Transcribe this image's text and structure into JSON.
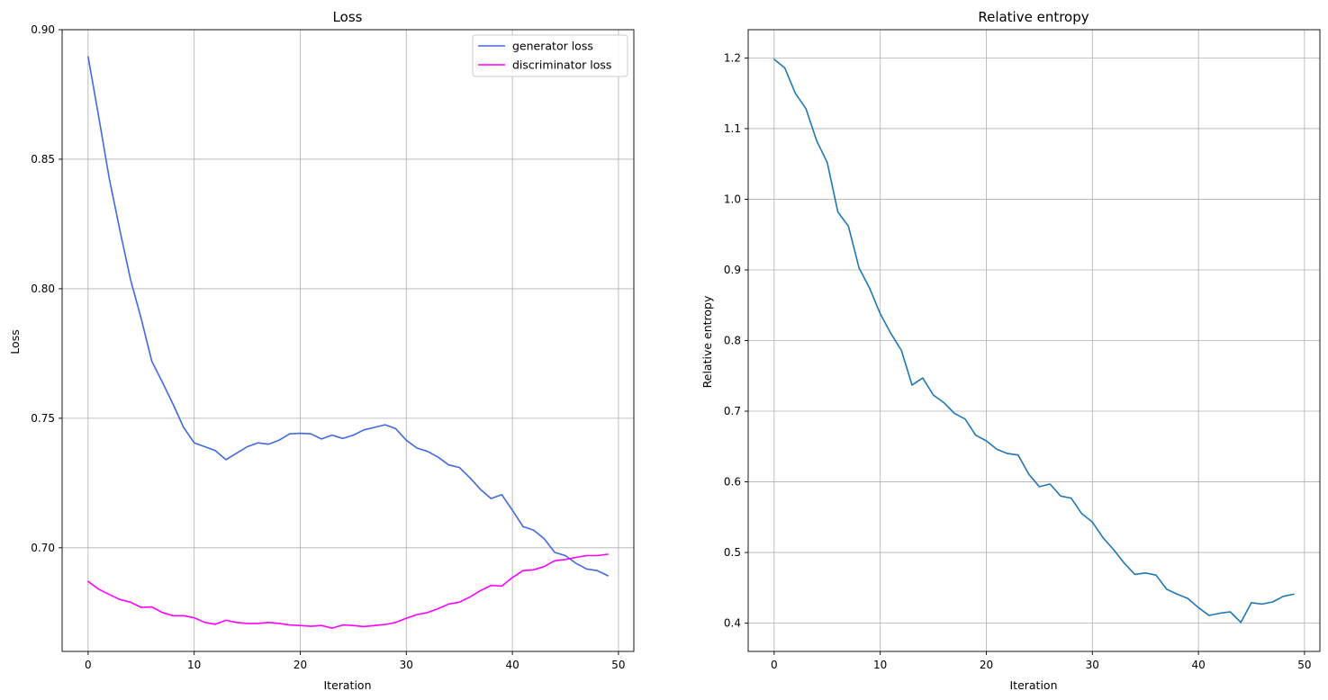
{
  "chart_data": [
    {
      "type": "line",
      "title": "Loss",
      "xlabel": "Iteration",
      "ylabel": "Loss",
      "xlim": [
        -2.45,
        51.45
      ],
      "ylim": [
        0.66,
        0.9
      ],
      "xticks": [
        0,
        10,
        20,
        30,
        40,
        50
      ],
      "yticks": [
        0.7,
        0.75,
        0.8,
        0.85,
        0.9
      ],
      "ytick_labels": [
        "0.70",
        "0.75",
        "0.80",
        "0.85",
        "0.90"
      ],
      "grid": true,
      "legend": "top-right",
      "x": [
        0,
        1,
        2,
        3,
        4,
        5,
        6,
        7,
        8,
        9,
        10,
        11,
        12,
        13,
        14,
        15,
        16,
        17,
        18,
        19,
        20,
        21,
        22,
        23,
        24,
        25,
        26,
        27,
        28,
        29,
        30,
        31,
        32,
        33,
        34,
        35,
        36,
        37,
        38,
        39,
        40,
        41,
        42,
        43,
        44,
        45,
        46,
        47,
        48,
        49
      ],
      "series": [
        {
          "name": "generator loss",
          "color": "#4169e1",
          "values": [
            0.8895,
            0.8665,
            0.8425,
            0.8225,
            0.8035,
            0.7885,
            0.772,
            0.764,
            0.7555,
            0.7465,
            0.7405,
            0.739,
            0.7375,
            0.734,
            0.7365,
            0.739,
            0.7405,
            0.74,
            0.7415,
            0.744,
            0.7442,
            0.744,
            0.742,
            0.7435,
            0.7422,
            0.7435,
            0.7455,
            0.7465,
            0.7475,
            0.746,
            0.7415,
            0.7385,
            0.7372,
            0.735,
            0.732,
            0.731,
            0.727,
            0.7225,
            0.719,
            0.7205,
            0.7145,
            0.7082,
            0.7068,
            0.7035,
            0.6982,
            0.697,
            0.694,
            0.6918,
            0.6912,
            0.6892
          ]
        },
        {
          "name": "discriminator loss",
          "color": "#ff00ff",
          "values": [
            0.687,
            0.684,
            0.682,
            0.68,
            0.679,
            0.677,
            0.6772,
            0.675,
            0.6738,
            0.6738,
            0.673,
            0.6712,
            0.6705,
            0.672,
            0.6712,
            0.6708,
            0.6708,
            0.6712,
            0.6708,
            0.6702,
            0.67,
            0.6697,
            0.67,
            0.669,
            0.6702,
            0.67,
            0.6696,
            0.67,
            0.6704,
            0.6712,
            0.6728,
            0.6742,
            0.675,
            0.6765,
            0.6783,
            0.679,
            0.681,
            0.6835,
            0.6855,
            0.6852,
            0.6885,
            0.6912,
            0.6915,
            0.6928,
            0.695,
            0.6955,
            0.6963,
            0.697,
            0.697,
            0.6975
          ]
        }
      ]
    },
    {
      "type": "line",
      "title": "Relative entropy",
      "xlabel": "Iteration",
      "ylabel": "Relative entropy",
      "xlim": [
        -2.45,
        51.45
      ],
      "ylim": [
        0.36,
        1.24
      ],
      "xticks": [
        0,
        10,
        20,
        30,
        40,
        50
      ],
      "yticks": [
        0.4,
        0.5,
        0.6,
        0.7,
        0.8,
        0.9,
        1.0,
        1.1,
        1.2
      ],
      "ytick_labels": [
        "0.4",
        "0.5",
        "0.6",
        "0.7",
        "0.8",
        "0.9",
        "1.0",
        "1.1",
        "1.2"
      ],
      "grid": true,
      "x": [
        0,
        1,
        2,
        3,
        4,
        5,
        6,
        7,
        8,
        9,
        10,
        11,
        12,
        13,
        14,
        15,
        16,
        17,
        18,
        19,
        20,
        21,
        22,
        23,
        24,
        25,
        26,
        27,
        28,
        29,
        30,
        31,
        32,
        33,
        34,
        35,
        36,
        37,
        38,
        39,
        40,
        41,
        42,
        43,
        44,
        45,
        46,
        47,
        48,
        49
      ],
      "series": [
        {
          "name": "relative entropy",
          "color": "#1f77b4",
          "values": [
            1.198,
            1.186,
            1.15,
            1.128,
            1.083,
            1.052,
            0.982,
            0.962,
            0.903,
            0.874,
            0.838,
            0.81,
            0.786,
            0.737,
            0.747,
            0.723,
            0.712,
            0.697,
            0.689,
            0.666,
            0.658,
            0.646,
            0.64,
            0.638,
            0.611,
            0.593,
            0.597,
            0.58,
            0.577,
            0.555,
            0.543,
            0.521,
            0.504,
            0.485,
            0.469,
            0.471,
            0.468,
            0.448,
            0.441,
            0.435,
            0.422,
            0.411,
            0.414,
            0.416,
            0.401,
            0.429,
            0.427,
            0.43,
            0.438,
            0.441
          ]
        }
      ]
    }
  ]
}
